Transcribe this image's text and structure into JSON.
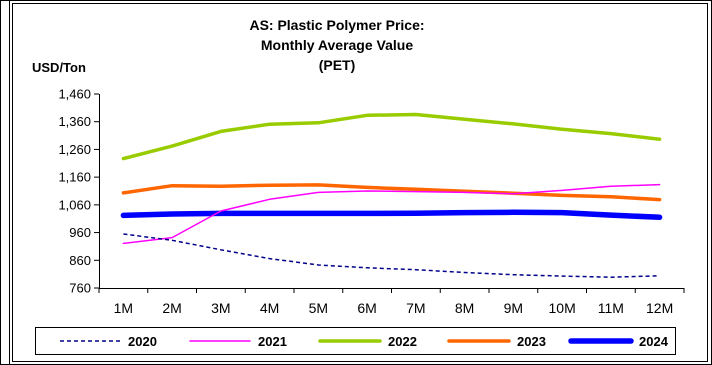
{
  "chart_data": {
    "type": "line",
    "title_lines": [
      "AS: Plastic Polymer Price:",
      "Monthly Average Value",
      "(PET)"
    ],
    "ylabel": "USD/Ton",
    "xlabel": "",
    "categories": [
      "1M",
      "2M",
      "3M",
      "4M",
      "5M",
      "6M",
      "7M",
      "8M",
      "9M",
      "10M",
      "11M",
      "12M"
    ],
    "ylim": [
      760,
      1460
    ],
    "yticks": [
      "1,460",
      "1,360",
      "1,260",
      "1,160",
      "1,060",
      "960",
      "860",
      "760"
    ],
    "ytick_values": [
      1460,
      1360,
      1260,
      1160,
      1060,
      960,
      860,
      760
    ],
    "grid": false,
    "legend_position": "bottom",
    "series": [
      {
        "name": "2020",
        "color": "#00008B",
        "style": "dashed",
        "width": "thin",
        "values": [
          955,
          932,
          898,
          866,
          843,
          833,
          826,
          816,
          808,
          803,
          799,
          804
        ]
      },
      {
        "name": "2021",
        "color": "#FF00FF",
        "style": "solid",
        "width": "thin",
        "values": [
          921,
          942,
          1038,
          1080,
          1105,
          1110,
          1108,
          1105,
          1100,
          1112,
          1127,
          1133
        ]
      },
      {
        "name": "2022",
        "color": "#99CC00",
        "style": "solid",
        "width": "thick",
        "values": [
          1227,
          1272,
          1325,
          1351,
          1356,
          1383,
          1386,
          1369,
          1352,
          1333,
          1317,
          1297
        ]
      },
      {
        "name": "2023",
        "color": "#FF6600",
        "style": "solid",
        "width": "thick",
        "values": [
          1103,
          1129,
          1127,
          1131,
          1132,
          1123,
          1116,
          1109,
          1102,
          1094,
          1089,
          1079
        ]
      },
      {
        "name": "2024",
        "color": "#0000FF",
        "style": "solid",
        "width": "heavy",
        "values": [
          1022,
          1027,
          1029,
          1029,
          1029,
          1029,
          1030,
          1032,
          1033,
          1032,
          1023,
          1015
        ]
      }
    ]
  }
}
